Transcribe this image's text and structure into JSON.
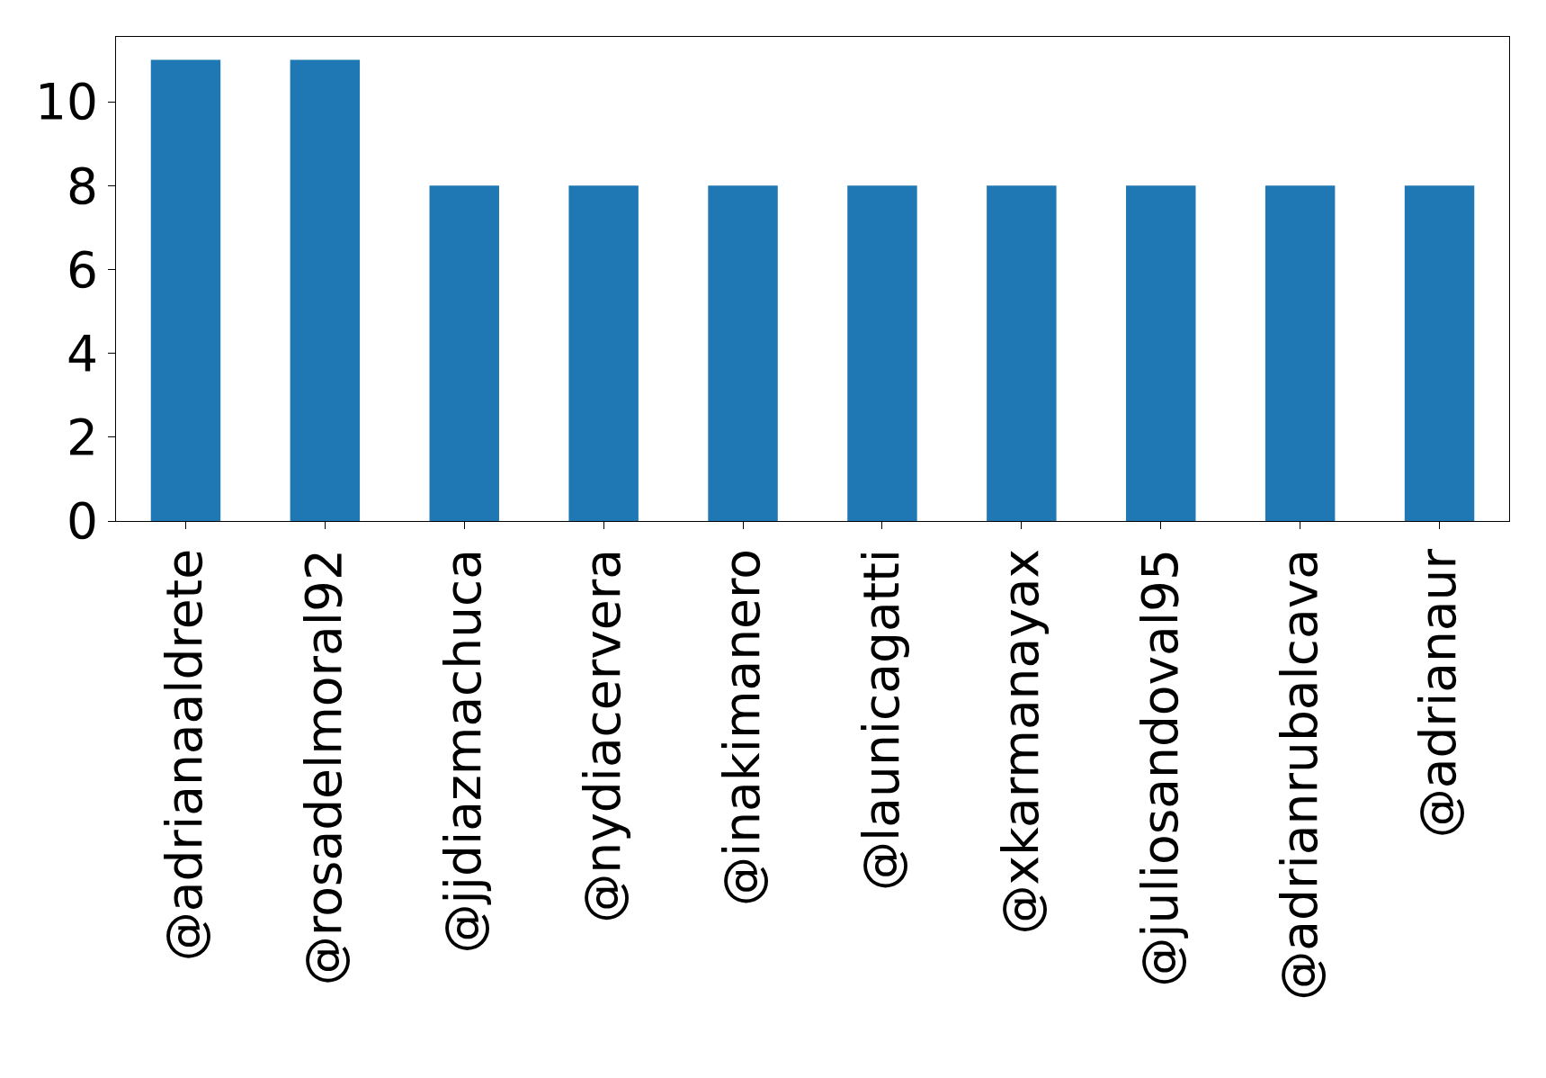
{
  "chart_data": {
    "type": "bar",
    "categories": [
      "@adrianaaldrete",
      "@rosadelmoral92",
      "@jjdiazmachuca",
      "@nydiacervera",
      "@inakimanero",
      "@launicagatti",
      "@xkarmanayax",
      "@juliosandoval95",
      "@adrianrubalcava",
      "@adrianaur"
    ],
    "values": [
      11,
      11,
      8,
      8,
      8,
      8,
      8,
      8,
      8,
      8
    ],
    "color": "#1f77b4",
    "ylim": [
      0,
      11.55
    ],
    "yticks": [
      0,
      2,
      4,
      6,
      8,
      10
    ]
  }
}
